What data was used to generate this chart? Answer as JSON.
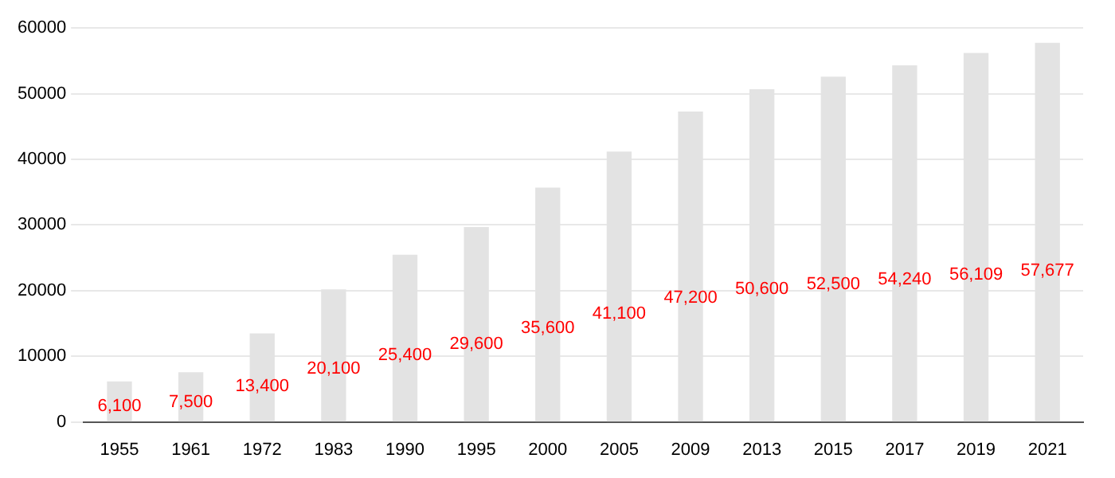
{
  "chart_data": {
    "type": "bar",
    "categories": [
      "1955",
      "1961",
      "1972",
      "1983",
      "1990",
      "1995",
      "2000",
      "2005",
      "2009",
      "2013",
      "2015",
      "2017",
      "2019",
      "2021"
    ],
    "values": [
      6100,
      7500,
      13400,
      20100,
      25400,
      29600,
      35600,
      41100,
      47200,
      50600,
      52500,
      54240,
      56109,
      57677
    ],
    "value_labels": [
      "6,100",
      "7,500",
      "13,400",
      "20,100",
      "25,400",
      "29,600",
      "35,600",
      "41,100",
      "47,200",
      "50,600",
      "52,500",
      "54,240",
      "56,109",
      "57,677"
    ],
    "color": "#e3e3e3",
    "ylim": [
      0,
      60000
    ],
    "yticks": [
      0,
      10000,
      20000,
      30000,
      40000,
      50000,
      60000
    ],
    "grid": "y"
  }
}
